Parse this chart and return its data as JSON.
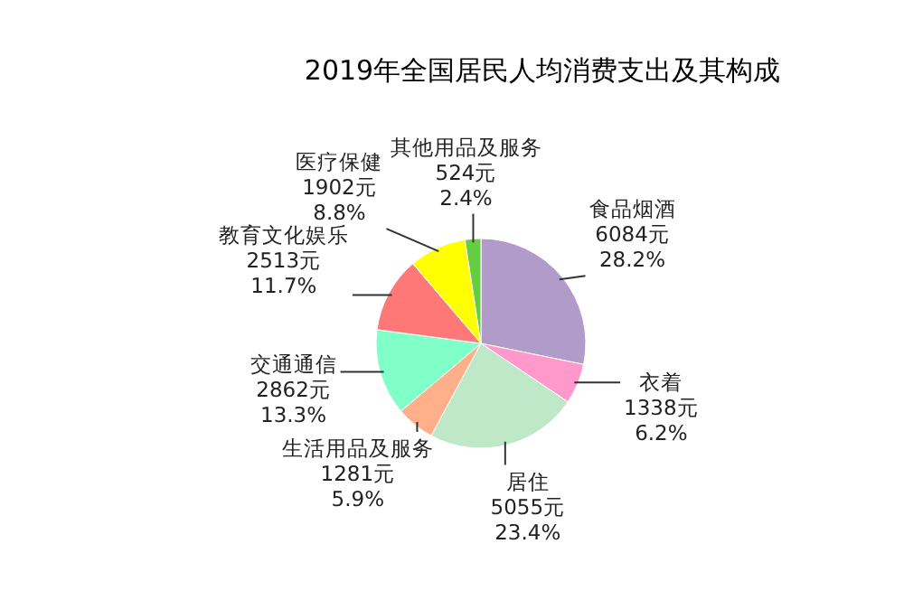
{
  "chart_data": {
    "type": "pie",
    "title": "2019年全国居民人均消费支出及其构成",
    "categories": [
      "食品烟酒",
      "衣着",
      "居住",
      "生活用品及服务",
      "交通通信",
      "教育文化娱乐",
      "医疗保健",
      "其他用品及服务"
    ],
    "values": [
      6084,
      1338,
      5055,
      1281,
      2862,
      2513,
      1902,
      524
    ],
    "value_labels": [
      "6084元\n28.2%",
      "1338元\n6.2%",
      "5055元\n23.4%",
      "1281元\n5.9%",
      "2862元\n13.3%",
      "2513元\n11.7%",
      "1902元\n8.8%",
      "524元\n2.4%"
    ],
    "colors": [
      "#b19cc9",
      "#ff99cc",
      "#bfe8c8",
      "#ffb08a",
      "#80ffc8",
      "#ff7878",
      "#ffff00",
      "#66cc44"
    ]
  }
}
